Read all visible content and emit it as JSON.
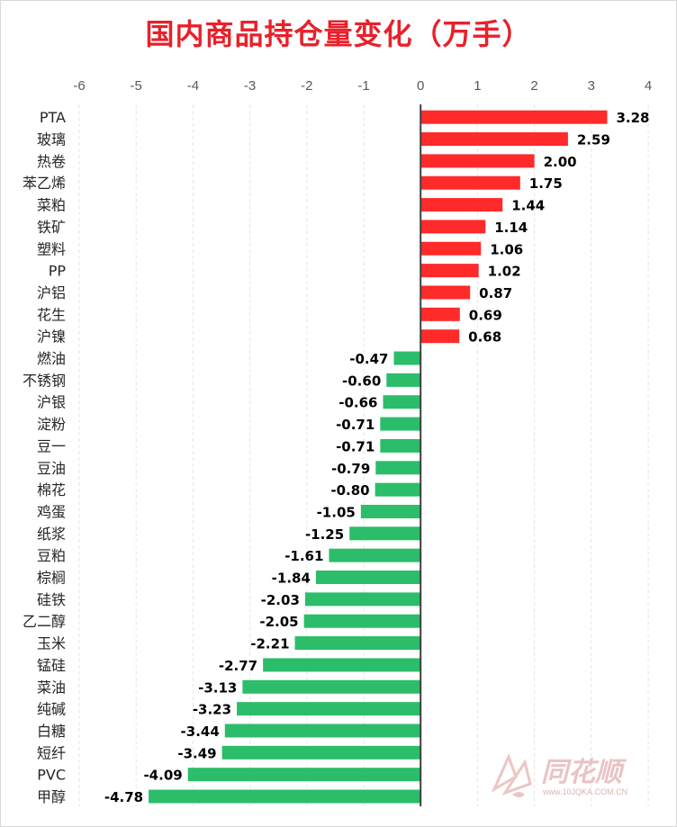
{
  "title": "国内商品持仓量变化（万手）",
  "watermark": {
    "name": "同花顺",
    "url": "www.10JQKA.COM.CN"
  },
  "colors": {
    "positive": "#ff2a2a",
    "negative": "#2bbd6a",
    "axis": "#404040",
    "title": "#e8212b"
  },
  "chart_data": {
    "type": "bar",
    "orientation": "horizontal",
    "title": "国内商品持仓量变化（万手）",
    "xlim": [
      -6,
      4
    ],
    "xticks": [
      "-6",
      "-5",
      "-4",
      "-3",
      "-2",
      "-1",
      "0",
      "1",
      "2",
      "3",
      "4"
    ],
    "grid": true,
    "categories": [
      "PTA",
      "玻璃",
      "热卷",
      "苯乙烯",
      "菜粕",
      "铁矿",
      "塑料",
      "PP",
      "沪铝",
      "花生",
      "沪镍",
      "燃油",
      "不锈钢",
      "沪银",
      "淀粉",
      "豆一",
      "豆油",
      "棉花",
      "鸡蛋",
      "纸浆",
      "豆粕",
      "棕榈",
      "硅铁",
      "乙二醇",
      "玉米",
      "锰硅",
      "菜油",
      "纯碱",
      "白糖",
      "短纤",
      "PVC",
      "甲醇"
    ],
    "values": [
      3.28,
      2.59,
      2.0,
      1.75,
      1.44,
      1.14,
      1.06,
      1.02,
      0.87,
      0.69,
      0.68,
      -0.47,
      -0.6,
      -0.66,
      -0.71,
      -0.71,
      -0.79,
      -0.8,
      -1.05,
      -1.25,
      -1.61,
      -1.84,
      -2.03,
      -2.05,
      -2.21,
      -2.77,
      -3.13,
      -3.23,
      -3.44,
      -3.49,
      -4.09,
      -4.78
    ],
    "labels": [
      "3.28",
      "2.59",
      "2.00",
      "1.75",
      "1.44",
      "1.14",
      "1.06",
      "1.02",
      "0.87",
      "0.69",
      "0.68",
      "-0.47",
      "-0.60",
      "-0.66",
      "-0.71",
      "-0.71",
      "-0.79",
      "-0.80",
      "-1.05",
      "-1.25",
      "-1.61",
      "-1.84",
      "-2.03",
      "-2.05",
      "-2.21",
      "-2.77",
      "-3.13",
      "-3.23",
      "-3.44",
      "-3.49",
      "-4.09",
      "-4.78"
    ]
  }
}
